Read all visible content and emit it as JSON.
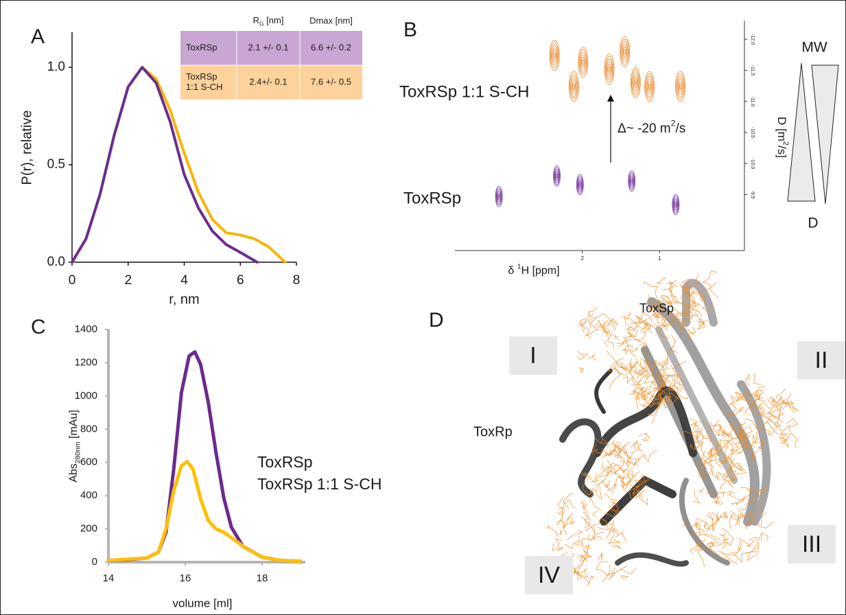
{
  "chart_data": [
    {
      "panel": "A",
      "type": "line",
      "xlabel": "r, nm",
      "ylabel": "P(r), relative",
      "xlim": [
        0,
        8
      ],
      "xticks": [
        0,
        2,
        4,
        6,
        8
      ],
      "ylim": [
        0,
        1.18
      ],
      "yticks": [
        {
          "value": 0,
          "label": "0.0"
        },
        {
          "value": 0.5,
          "label": "0.5"
        },
        {
          "value": 1,
          "label": "1.0"
        }
      ],
      "series": [
        {
          "color": "#f7b500",
          "x": [
            0,
            0.5,
            1,
            1.5,
            2,
            2.5,
            3,
            3.5,
            4,
            4.5,
            5,
            5.5,
            6,
            6.5,
            7,
            7.6
          ],
          "values": [
            0,
            0.12,
            0.35,
            0.65,
            0.9,
            1.0,
            0.94,
            0.78,
            0.56,
            0.36,
            0.22,
            0.15,
            0.14,
            0.12,
            0.08,
            0
          ]
        },
        {
          "color": "#6a2c91",
          "x": [
            0,
            0.5,
            1,
            1.5,
            2,
            2.5,
            3,
            3.5,
            4,
            4.5,
            5,
            5.5,
            6,
            6.6
          ],
          "values": [
            0,
            0.12,
            0.35,
            0.65,
            0.9,
            1.0,
            0.92,
            0.72,
            0.45,
            0.28,
            0.16,
            0.09,
            0.05,
            0
          ]
        }
      ],
      "table": {
        "header": [
          {
            "text": "R",
            "sub": "G",
            "tail": " [nm]"
          },
          "Dmax [nm]"
        ],
        "row_colors": [
          "#c9a6d3",
          "#fdd29b"
        ],
        "rows": [
          {
            "label": [
              "ToxRSp"
            ],
            "rg": "2.1 +/- 0.1",
            "dmax": "6.6 +/- 0.2"
          },
          {
            "label": [
              "ToxRSp",
              "1:1 S-CH"
            ],
            "rg": "2.4+/- 0.1",
            "dmax": "7.6 +/- 0.5"
          }
        ]
      }
    },
    {
      "panel": "B",
      "type": "contour",
      "xlabel": {
        "text": "δ ",
        "sup": "1",
        "tail": "H [ppm]"
      },
      "ylabel": {
        "text": "D [m",
        "sup": "2",
        "tail": "/s]"
      },
      "xlim": [
        3.65,
        -0.1
      ],
      "xticks": [
        2,
        1
      ],
      "ylim": [
        -12.3,
        -8.6
      ],
      "yticks": [
        {
          "value": -12,
          "label": "-12.0"
        },
        -11.5,
        {
          "value": -11,
          "label": "-11.0"
        },
        -10.5,
        {
          "value": -10,
          "label": "-10.0"
        },
        -9.5
      ],
      "series": [
        {
          "name": "ToxRSp 1:1 S-CH",
          "color": "#e8862a",
          "x": [
            2.36,
            2.11,
            1.99,
            1.65,
            1.45,
            1.31,
            1.13,
            0.73
          ],
          "values": [
            -11.74,
            -11.24,
            -11.63,
            -11.52,
            -11.8,
            -11.3,
            -11.24,
            -11.24
          ]
        },
        {
          "name": "ToxRSp",
          "color": "#7a3ea0",
          "x": [
            3.08,
            2.33,
            2.03,
            1.36,
            0.79
          ],
          "values": [
            -9.47,
            -9.8,
            -9.66,
            -9.72,
            -9.34
          ]
        }
      ],
      "annotation": {
        "text": "Δ~ -20 m",
        "sup": "2",
        "tail": "/s"
      },
      "wedge_labels": [
        "MW",
        "D"
      ]
    },
    {
      "panel": "C",
      "type": "line",
      "xlabel": "volume [ml]",
      "ylabel": {
        "text": "Abs",
        "sub": "280nm",
        "tail": " [mAu]"
      },
      "xlim": [
        14,
        19
      ],
      "xticks": [
        14,
        16,
        18
      ],
      "ylim": [
        0,
        1400
      ],
      "yticks": [
        0,
        200,
        400,
        600,
        800,
        1000,
        1200,
        1400
      ],
      "series": [
        {
          "name": "ToxRSp",
          "color": "#6b2a8e",
          "x": [
            14,
            14.5,
            15,
            15.3,
            15.5,
            15.7,
            15.9,
            16.1,
            16.25,
            16.4,
            16.6,
            16.8,
            17,
            17.2,
            17.5,
            18,
            18.5,
            19
          ],
          "values": [
            10,
            15,
            25,
            60,
            180,
            560,
            1020,
            1240,
            1265,
            1190,
            960,
            660,
            390,
            210,
            95,
            30,
            10,
            5
          ]
        },
        {
          "name": "ToxRSp 1:1 S-CH",
          "color": "#ffc000",
          "x": [
            14,
            15,
            15.3,
            15.5,
            15.7,
            15.9,
            16.05,
            16.2,
            16.4,
            16.6,
            16.8,
            17,
            17.3,
            17.6,
            18,
            18.5,
            19
          ],
          "values": [
            10,
            25,
            60,
            200,
            430,
            580,
            605,
            560,
            380,
            250,
            200,
            180,
            130,
            80,
            30,
            10,
            5
          ]
        }
      ]
    }
  ],
  "panel_d": {
    "panel": "D",
    "labels": {
      "toxsp": "ToxSp",
      "toxrp": "ToxRp"
    },
    "regions": [
      "I",
      "II",
      "III",
      "IV"
    ]
  }
}
